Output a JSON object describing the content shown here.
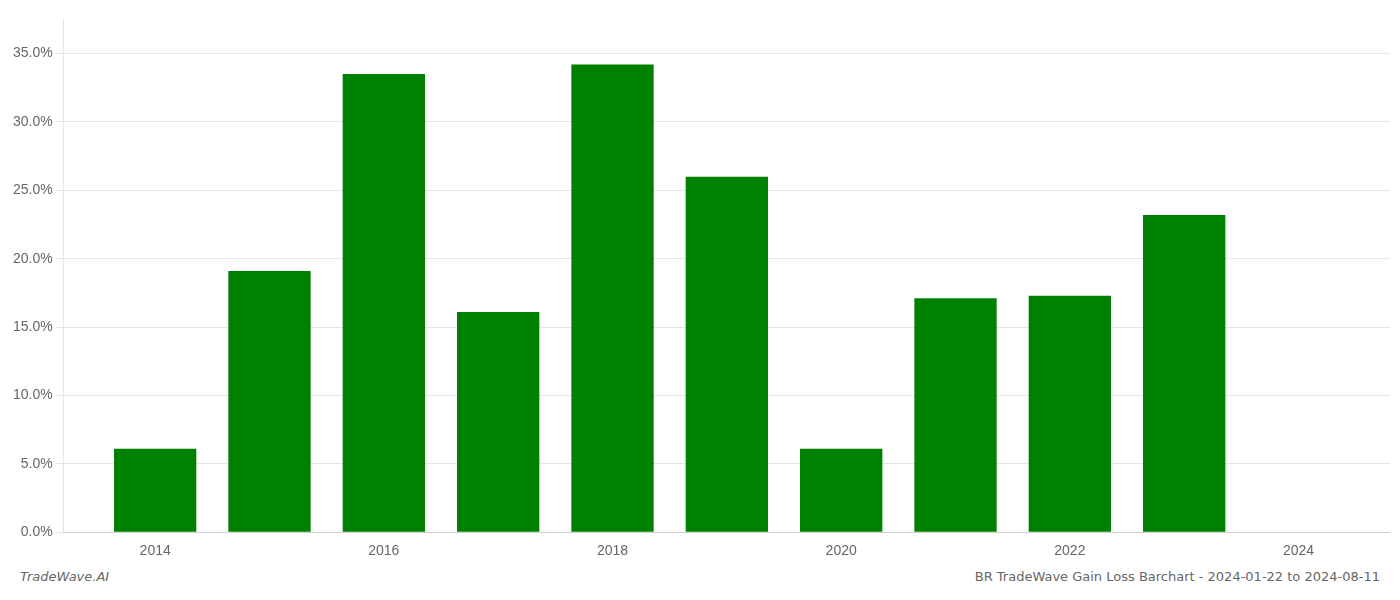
{
  "chart_data": {
    "type": "bar",
    "x": [
      2014,
      2015,
      2016,
      2017,
      2018,
      2019,
      2020,
      2021,
      2022,
      2023
    ],
    "values": [
      0.061,
      0.191,
      0.335,
      0.161,
      0.342,
      0.26,
      0.061,
      0.171,
      0.173,
      0.232
    ],
    "color": "#008000",
    "xlim": [
      2013.2,
      2024.8
    ],
    "xticks": [
      2014,
      2016,
      2018,
      2020,
      2022,
      2024
    ],
    "ylim": [
      0.0,
      0.375
    ],
    "yticks": [
      {
        "value": 0.0,
        "label": "0.0%"
      },
      {
        "value": 0.05,
        "label": "5.0%"
      },
      {
        "value": 0.1,
        "label": "10.0%"
      },
      {
        "value": 0.15,
        "label": "15.0%"
      },
      {
        "value": 0.2,
        "label": "20.0%"
      },
      {
        "value": 0.25,
        "label": "25.0%"
      },
      {
        "value": 0.3,
        "label": "30.0%"
      },
      {
        "value": 0.35,
        "label": "35.0%"
      }
    ],
    "grid": "y",
    "annotations": [
      "TradeWave.AI",
      "BR TradeWave Gain Loss Barchart - 2024-01-22 to 2024-08-11"
    ]
  }
}
